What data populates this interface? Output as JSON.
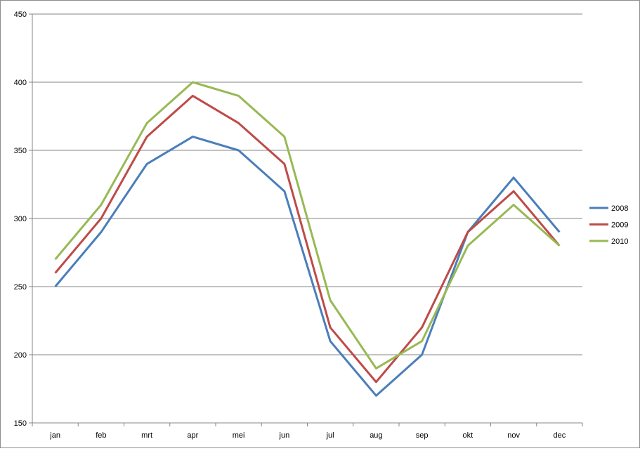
{
  "chart_data": {
    "type": "line",
    "title": "",
    "xlabel": "",
    "ylabel": "",
    "categories": [
      "jan",
      "feb",
      "mrt",
      "apr",
      "mei",
      "jun",
      "jul",
      "aug",
      "sep",
      "okt",
      "nov",
      "dec"
    ],
    "ylim": [
      150,
      450
    ],
    "yticks": [
      150,
      200,
      250,
      300,
      350,
      400,
      450
    ],
    "grid": "horizontal",
    "legend_position": "right",
    "series": [
      {
        "name": "2008",
        "color": "#4a7ebb",
        "values": [
          250,
          290,
          340,
          360,
          350,
          320,
          210,
          170,
          200,
          290,
          330,
          290
        ]
      },
      {
        "name": "2009",
        "color": "#be4b48",
        "values": [
          260,
          300,
          360,
          390,
          370,
          340,
          220,
          180,
          220,
          290,
          320,
          280
        ]
      },
      {
        "name": "2010",
        "color": "#98b954",
        "values": [
          270,
          310,
          370,
          400,
          390,
          360,
          240,
          190,
          210,
          280,
          310,
          280
        ]
      }
    ]
  }
}
